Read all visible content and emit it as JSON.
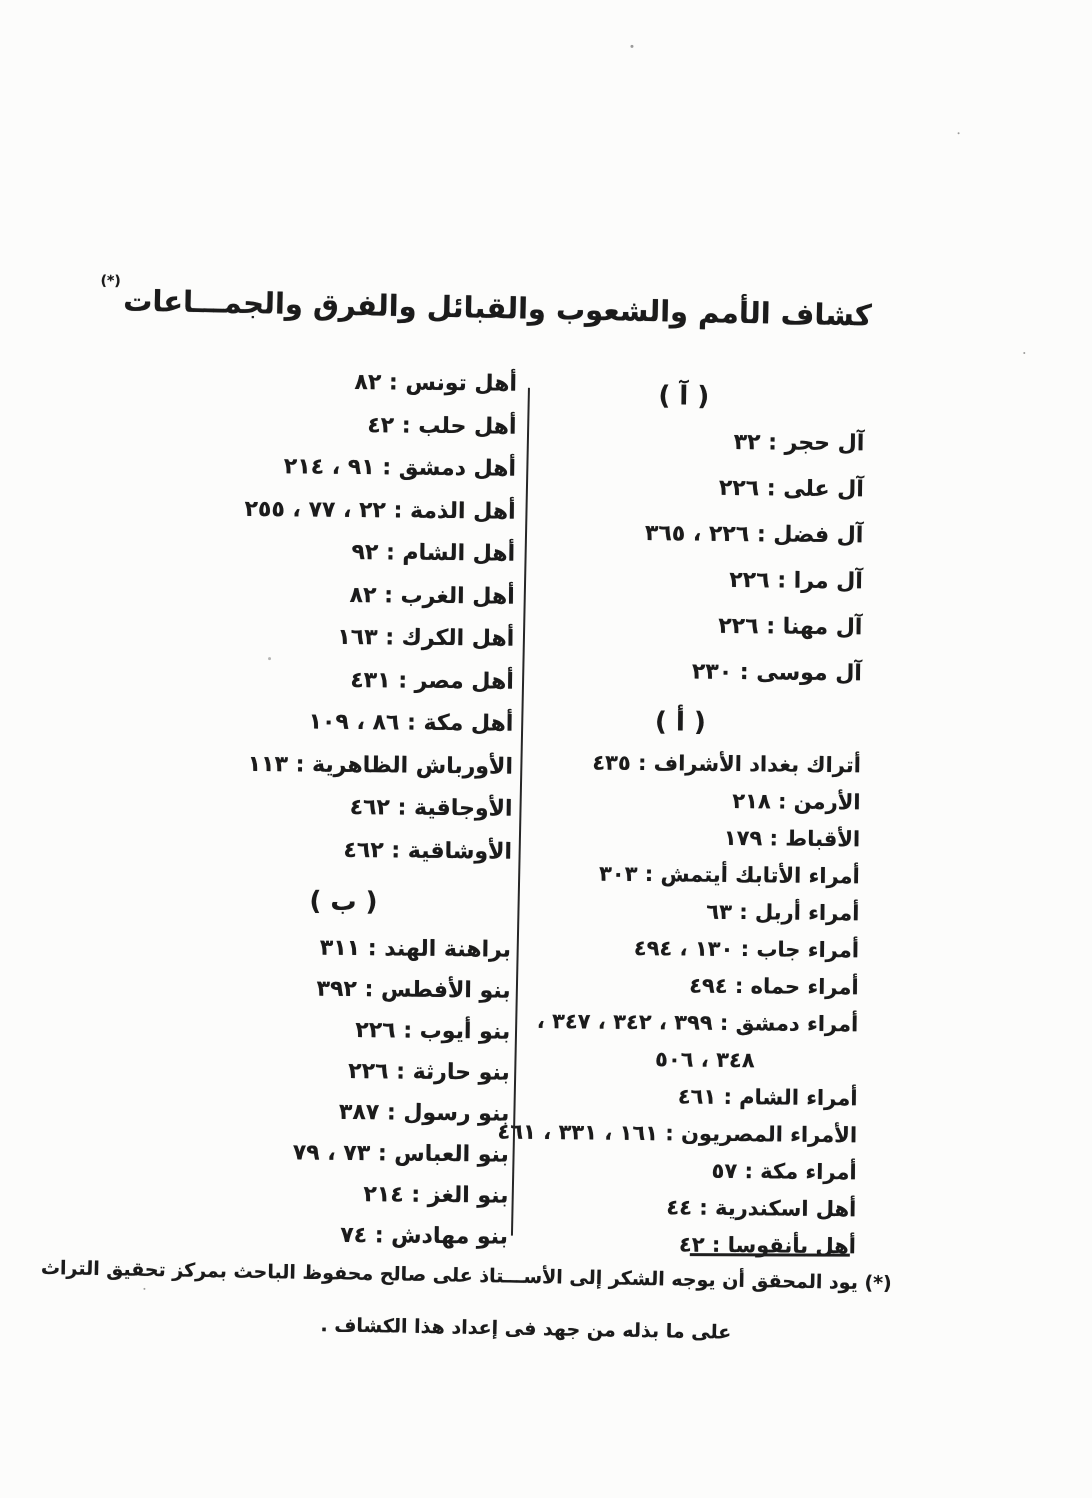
{
  "colors": {
    "ink": "#1b1b1b",
    "paper": "#fcfcfb"
  },
  "title": {
    "text": "كشاف الأمم والشعوب والقبائل والفرق والجمـــاعات",
    "footnote_marker": "(*)"
  },
  "right_column": {
    "section_alif_madda": {
      "header": "( آ )",
      "entries": [
        "آل حجر : ٣٢",
        "آل على : ٢٢٦",
        "آل فضل : ٢٢٦ ، ٣٦٥",
        "آل مرا : ٢٢٦",
        "آل مهنا : ٢٢٦",
        "آل موسى : ٢٣٠"
      ]
    },
    "section_alif": {
      "header": "( أ )",
      "entries": [
        "أتراك بغداد الأشراف : ٤٣٥",
        "الأرمن : ٢١٨",
        "الأقباط : ١٧٩",
        "أمراء الأتابك أيتمش : ٣٠٣",
        "أمراء أربل : ٦٣",
        "أمراء جاب : ١٣٠ ، ٤٩٤",
        "أمراء حماه : ٤٩٤",
        "أمراء دمشق : ٣٩٩ ، ٣٤٢ ، ٣٤٧ ،",
        "٣٤٨ ، ٥٠٦",
        "أمراء الشام : ٤٦١",
        "الأمراء المصريون : ١٦١ ، ٣٣١ ، ٤٦١",
        "أمراء مكة : ٥٧",
        "أهل اسكندرية : ٤٤",
        "أهل بأنقوسا : ٤٢"
      ]
    }
  },
  "left_column": {
    "section_alif_continued": {
      "entries": [
        "أهل تونس : ٨٢",
        "أهل حلب : ٤٢",
        "أهل دمشق : ٩١ ، ٢١٤",
        "أهل الذمة : ٢٢ ، ٧٧ ، ٢٥٥",
        "أهل الشام : ٩٢",
        "أهل الغرب : ٨٢",
        "أهل الكرك : ١٦٣",
        "أهل مصر : ٤٣١",
        "أهل مكة : ٨٦ ، ١٠٩",
        "الأورباش الظاهرية : ١١٣",
        "الأوجاقية : ٤٦٢",
        "الأوشاقية : ٤٦٢"
      ]
    },
    "section_ba": {
      "header": "( ب )",
      "entries": [
        "براهنة الهند : ٣١١",
        "بنو الأفطس : ٣٩٢",
        "بنو أيوب : ٢٢٦",
        "بنو حارثة : ٢٢٦",
        "بنو رسول : ٣٨٧",
        "بنو العباس : ٧٣ ، ٧٩",
        "بنو الغز : ٢١٤",
        "بنو مهادش : ٧٤"
      ]
    }
  },
  "footnote": {
    "line1": "(*) يود المحقق أن يوجه الشكر إلى الأســـتاذ على صالح محفوظ الباحث بمركز تحقيق التراث",
    "line2": "على ما بذله من جهد فى إعداد هذا الكشاف ."
  }
}
